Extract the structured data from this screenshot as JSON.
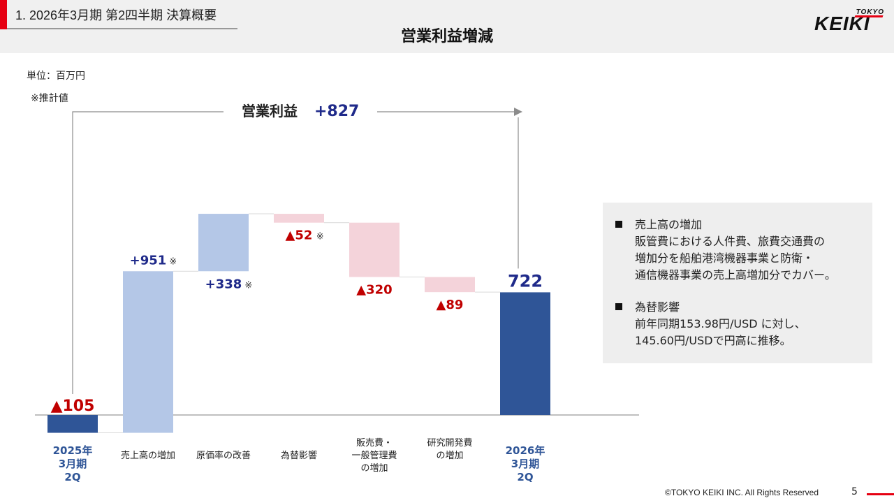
{
  "header": {
    "section_title": "1. 2026年3月期 第2四半期 決算概要",
    "page_title": "営業利益増減",
    "logo_top": "TOKYO",
    "logo_main": "KEIKI"
  },
  "unit_label": "単位：百万円",
  "estimate_note": "※推計値",
  "summary": {
    "label": "営業利益",
    "value": "+827"
  },
  "colors": {
    "base_bar": "#2f5597",
    "increase_bar": "#b4c7e7",
    "decrease_bar": "#f4d3da",
    "increase_text": "#1f2a8a",
    "decrease_text": "#c00000",
    "accent": "#e60012"
  },
  "chart_data": {
    "type": "waterfall",
    "unit": "百万円",
    "steps": [
      {
        "category": "2025年\n3月期\n2Q",
        "kind": "total",
        "value": -105,
        "label": "▲105"
      },
      {
        "category": "売上高の増加",
        "kind": "delta",
        "value": 951,
        "label": "+951",
        "estimated": true
      },
      {
        "category": "原価率の改善",
        "kind": "delta",
        "value": 338,
        "label": "+338",
        "estimated": true
      },
      {
        "category": "為替影響",
        "kind": "delta",
        "value": -52,
        "label": "▲52",
        "estimated": true
      },
      {
        "category": "販売費・\n一般管理費\nの増加",
        "kind": "delta",
        "value": -320,
        "label": "▲320",
        "estimated": false
      },
      {
        "category": "研究開発費\nの増加",
        "kind": "delta",
        "value": -89,
        "label": "▲89",
        "estimated": false
      },
      {
        "category": "2026年\n3月期\n2Q",
        "kind": "total",
        "value": 722,
        "label": "722"
      }
    ],
    "estimate_mark": "※"
  },
  "notes": [
    {
      "title": "売上高の増加",
      "body": "販管費における人件費、旅費交通費の\n増加分を船舶港湾機器事業と防衛・\n通信機器事業の売上高増加分でカバー。"
    },
    {
      "title": "為替影響",
      "body": "前年同期153.98円/USD に対し、\n145.60円/USDで円高に推移。"
    }
  ],
  "footer": {
    "copyright": "©TOKYO KEIKI INC. All Rights Reserved",
    "page_number": "5"
  }
}
